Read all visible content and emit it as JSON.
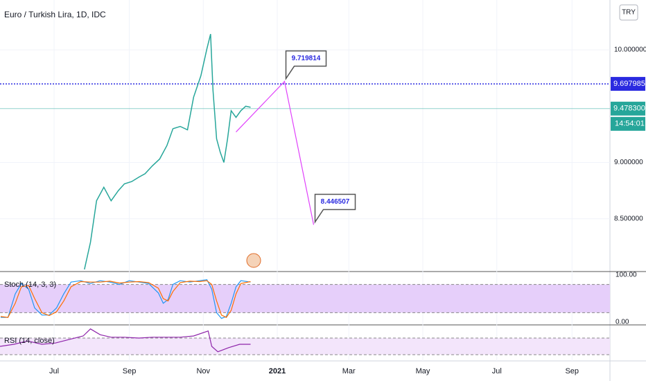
{
  "chart_data": [
    {
      "type": "line",
      "title": "Euro / Turkish Lira, 1D, IDC",
      "color": "#26a69a",
      "x": [
        25,
        30,
        35,
        41,
        47,
        53,
        58,
        64,
        70,
        75,
        81,
        87,
        93,
        98,
        104,
        110,
        115,
        121,
        126,
        129,
        131,
        134,
        137,
        140,
        143,
        146,
        150,
        154,
        158,
        162
      ],
      "values": [
        8.05,
        8.29,
        8.66,
        8.78,
        8.66,
        8.75,
        8.81,
        8.83,
        8.87,
        8.9,
        8.97,
        9.03,
        9.15,
        9.3,
        9.32,
        9.29,
        9.58,
        9.77,
        10.01,
        10.14,
        9.64,
        9.21,
        9.09,
        9.0,
        9.21,
        9.46,
        9.4,
        9.46,
        9.5,
        9.49
      ],
      "xlim": [
        -44.6,
        458.3
      ],
      "ylim": [
        8.031,
        10.443
      ],
      "xticks": [
        {
          "value": 0,
          "label": "Jul"
        },
        {
          "value": 62,
          "label": "Sep"
        },
        {
          "value": 123,
          "label": "Nov"
        },
        {
          "value": 184,
          "label": "2021",
          "bold": true
        },
        {
          "value": 243,
          "label": "Mar"
        },
        {
          "value": 304,
          "label": "May"
        },
        {
          "value": 365,
          "label": "Jul"
        },
        {
          "value": 427,
          "label": "Sep"
        }
      ],
      "yticks": [
        {
          "value": 10,
          "label": "10.000000"
        },
        {
          "value": 9,
          "label": "9.000000"
        },
        {
          "value": 8.5,
          "label": "8.500000"
        }
      ],
      "grid": true,
      "levels": [
        {
          "value": 9.697985,
          "label": "9.697985",
          "color": "#2a2ae0",
          "style": "dotted"
        },
        {
          "value": 9.4783,
          "label": "9.478300",
          "color": "#26a69a",
          "style": "solid",
          "countdown": "14:54:01"
        }
      ],
      "projection": {
        "color": "#e040fb",
        "x": [
          150,
          190,
          214
        ],
        "y": [
          9.27,
          9.719814,
          8.446507
        ]
      }
    },
    {
      "type": "line",
      "title": "Stoch (14, 3, 3)",
      "x": [
        -44,
        -38,
        -32,
        -27,
        -21,
        -16,
        -10,
        -4,
        2,
        8,
        14,
        22,
        30,
        38,
        46,
        54,
        62,
        70,
        78,
        86,
        90,
        94,
        98,
        104,
        112,
        120,
        126,
        130,
        134,
        138,
        142,
        146,
        150,
        154,
        162
      ],
      "series": [
        {
          "color": "#2196f3",
          "values": [
            10,
            10,
            60,
            82,
            70,
            30,
            15,
            15,
            30,
            60,
            85,
            88,
            82,
            88,
            85,
            80,
            88,
            85,
            82,
            62,
            40,
            48,
            80,
            88,
            85,
            88,
            90,
            70,
            20,
            8,
            12,
            40,
            75,
            88,
            85
          ]
        },
        {
          "color": "#ff6d00",
          "values": [
            12,
            10,
            40,
            75,
            78,
            50,
            20,
            14,
            22,
            45,
            75,
            86,
            85,
            85,
            87,
            83,
            85,
            86,
            84,
            72,
            50,
            45,
            65,
            84,
            87,
            86,
            88,
            80,
            45,
            15,
            10,
            25,
            60,
            82,
            86
          ]
        }
      ],
      "ylim": [
        -4.4,
        107.4
      ],
      "yticks": [
        {
          "value": 100,
          "label": "100.00"
        },
        {
          "value": 0,
          "label": "0.00"
        }
      ],
      "band": [
        20,
        80
      ],
      "band_color": "#e6cffa"
    },
    {
      "type": "line",
      "title": "RSI (14, close)",
      "color": "#8e24aa",
      "x": [
        -44.6,
        -33,
        -22,
        -10,
        1,
        13,
        24,
        30,
        38,
        47,
        58,
        70,
        81,
        93,
        104,
        115,
        127,
        130,
        135,
        144,
        153,
        162
      ],
      "values": [
        50,
        55,
        63,
        55,
        58,
        67,
        75,
        92,
        78,
        72,
        72,
        70,
        72,
        72,
        72,
        75,
        87,
        50,
        37,
        47,
        55,
        55
      ],
      "ylim": [
        15,
        100
      ],
      "band": [
        30,
        70
      ],
      "band_color": "#f3e5fb"
    }
  ],
  "currency_button": "TRY"
}
